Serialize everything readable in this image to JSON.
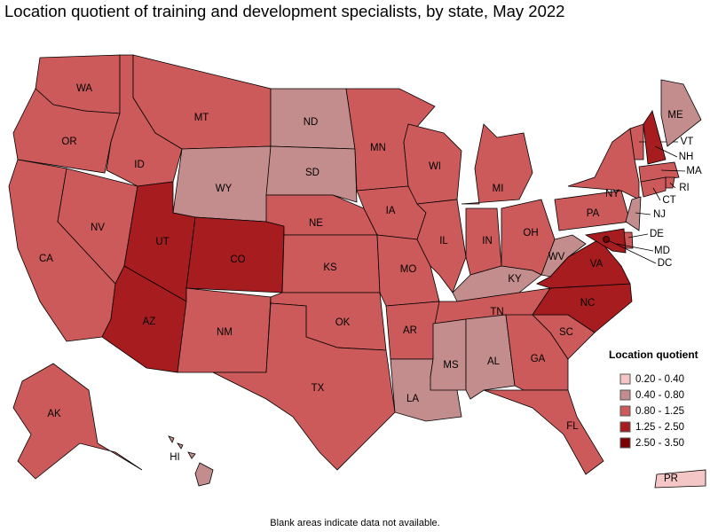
{
  "title": "Location quotient of training and development specialists, by state, May 2022",
  "legend": {
    "title": "Location quotient",
    "items": [
      {
        "label": "0.20 - 0.40",
        "color": "#f5c6c6"
      },
      {
        "label": "0.40 - 0.80",
        "color": "#c48d8d"
      },
      {
        "label": "0.80 - 1.25",
        "color": "#cd5a5a"
      },
      {
        "label": "1.25 - 2.50",
        "color": "#a71c1f"
      },
      {
        "label": "2.50 - 3.50",
        "color": "#7a0000"
      }
    ]
  },
  "states": [
    {
      "label": "WA",
      "color": "#cd5a5a"
    },
    {
      "label": "OR",
      "color": "#cd5a5a"
    },
    {
      "label": "CA",
      "color": "#cd5a5a"
    },
    {
      "label": "NV",
      "color": "#cd5a5a"
    },
    {
      "label": "ID",
      "color": "#cd5a5a"
    },
    {
      "label": "MT",
      "color": "#cd5a5a"
    },
    {
      "label": "WY",
      "color": "#c48d8d"
    },
    {
      "label": "UT",
      "color": "#a71c1f"
    },
    {
      "label": "AZ",
      "color": "#a71c1f"
    },
    {
      "label": "CO",
      "color": "#a71c1f"
    },
    {
      "label": "NM",
      "color": "#cd5a5a"
    },
    {
      "label": "ND",
      "color": "#c48d8d"
    },
    {
      "label": "SD",
      "color": "#c48d8d"
    },
    {
      "label": "NE",
      "color": "#cd5a5a"
    },
    {
      "label": "KS",
      "color": "#cd5a5a"
    },
    {
      "label": "OK",
      "color": "#cd5a5a"
    },
    {
      "label": "TX",
      "color": "#cd5a5a"
    },
    {
      "label": "MN",
      "color": "#cd5a5a"
    },
    {
      "label": "IA",
      "color": "#cd5a5a"
    },
    {
      "label": "MO",
      "color": "#cd5a5a"
    },
    {
      "label": "AR",
      "color": "#cd5a5a"
    },
    {
      "label": "LA",
      "color": "#c48d8d"
    },
    {
      "label": "WI",
      "color": "#cd5a5a"
    },
    {
      "label": "IL",
      "color": "#cd5a5a"
    },
    {
      "label": "MI",
      "color": "#cd5a5a"
    },
    {
      "label": "IN",
      "color": "#cd5a5a"
    },
    {
      "label": "OH",
      "color": "#cd5a5a"
    },
    {
      "label": "KY",
      "color": "#c48d8d"
    },
    {
      "label": "TN",
      "color": "#cd5a5a"
    },
    {
      "label": "MS",
      "color": "#c48d8d"
    },
    {
      "label": "AL",
      "color": "#c48d8d"
    },
    {
      "label": "GA",
      "color": "#cd5a5a"
    },
    {
      "label": "FL",
      "color": "#cd5a5a"
    },
    {
      "label": "SC",
      "color": "#cd5a5a"
    },
    {
      "label": "NC",
      "color": "#a71c1f"
    },
    {
      "label": "VA",
      "color": "#a71c1f"
    },
    {
      "label": "WV",
      "color": "#c48d8d"
    },
    {
      "label": "PA",
      "color": "#cd5a5a"
    },
    {
      "label": "NY",
      "color": "#cd5a5a"
    },
    {
      "label": "VT",
      "color": "#cd5a5a"
    },
    {
      "label": "NH",
      "color": "#a71c1f"
    },
    {
      "label": "ME",
      "color": "#c48d8d"
    },
    {
      "label": "MA",
      "color": "#cd5a5a"
    },
    {
      "label": "RI",
      "color": "#cd5a5a"
    },
    {
      "label": "CT",
      "color": "#cd5a5a"
    },
    {
      "label": "NJ",
      "color": "#c48d8d"
    },
    {
      "label": "DE",
      "color": "#cd5a5a"
    },
    {
      "label": "MD",
      "color": "#a71c1f"
    },
    {
      "label": "DC",
      "color": "#7a0000"
    },
    {
      "label": "AK",
      "color": "#cd5a5a"
    },
    {
      "label": "HI",
      "color": "#c48d8d"
    },
    {
      "label": "PR",
      "color": "#f5c6c6"
    }
  ],
  "note": "Blank areas indicate data not available."
}
